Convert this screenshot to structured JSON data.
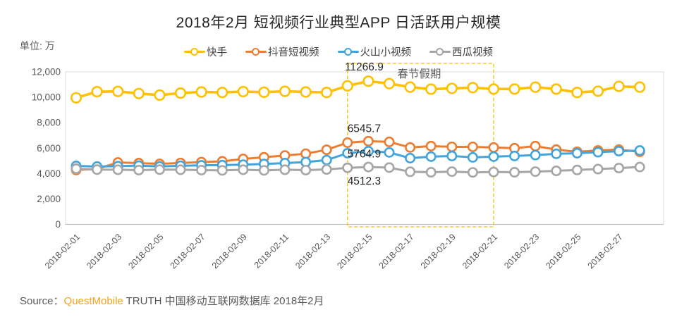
{
  "title": "2018年2月 短视频行业典型APP 日活跃用户规模",
  "unit_label": "单位: 万",
  "source": {
    "prefix": "Source：",
    "brand": "QuestMobile",
    "suffix": " TRUTH 中国移动互联网数据库 2018年2月"
  },
  "chart_data": {
    "type": "line",
    "title": "2018年2月 短视频行业典型APP 日活跃用户规模",
    "ylabel": "单位: 万",
    "ylim": [
      0,
      12000
    ],
    "grid": "plot-border-only",
    "legend_position": "top-center",
    "y_ticks": [
      {
        "value": 0,
        "label": "0"
      },
      {
        "value": 2000,
        "label": "2,000"
      },
      {
        "value": 4000,
        "label": "4,000"
      },
      {
        "value": 6000,
        "label": "6,000"
      },
      {
        "value": 8000,
        "label": "8,000"
      },
      {
        "value": 10000,
        "label": "10,000"
      },
      {
        "value": 12000,
        "label": "12,000"
      }
    ],
    "x": [
      "2018-02-01",
      "2018-02-02",
      "2018-02-03",
      "2018-02-04",
      "2018-02-05",
      "2018-02-06",
      "2018-02-07",
      "2018-02-08",
      "2018-02-09",
      "2018-02-10",
      "2018-02-11",
      "2018-02-12",
      "2018-02-13",
      "2018-02-14",
      "2018-02-15",
      "2018-02-16",
      "2018-02-17",
      "2018-02-18",
      "2018-02-19",
      "2018-02-20",
      "2018-02-21",
      "2018-02-22",
      "2018-02-23",
      "2018-02-24",
      "2018-02-25",
      "2018-02-26",
      "2018-02-27",
      "2018-02-28"
    ],
    "x_tick_every": 2,
    "series": [
      {
        "name": "快手",
        "key": "kuaishou",
        "color": "#FFC000",
        "values": [
          9960,
          10440,
          10460,
          10300,
          10170,
          10330,
          10420,
          10380,
          10450,
          10400,
          10470,
          10420,
          10380,
          10900,
          11266.9,
          11080,
          10800,
          10640,
          10700,
          10760,
          10650,
          10650,
          10800,
          10650,
          10380,
          10480,
          10860,
          10800
        ]
      },
      {
        "name": "抖音短视频",
        "key": "douyin",
        "color": "#ED7D31",
        "values": [
          4280,
          4360,
          4870,
          4820,
          4760,
          4830,
          4900,
          4960,
          5150,
          5280,
          5420,
          5560,
          5870,
          6430,
          6545.7,
          6490,
          6050,
          6160,
          6100,
          6100,
          6050,
          5990,
          6160,
          5880,
          5710,
          5820,
          5880,
          5710
        ]
      },
      {
        "name": "火山小视频",
        "key": "huoshan",
        "color": "#41A5DC",
        "values": [
          4600,
          4550,
          4580,
          4620,
          4560,
          4610,
          4650,
          4660,
          4700,
          4750,
          4820,
          4900,
          5060,
          5600,
          5764.9,
          5660,
          5210,
          5330,
          5380,
          5270,
          5330,
          5380,
          5450,
          5550,
          5600,
          5680,
          5760,
          5810
        ]
      },
      {
        "name": "西瓜视频",
        "key": "xigua",
        "color": "#A6A6A6",
        "values": [
          4380,
          4310,
          4300,
          4270,
          4310,
          4300,
          4270,
          4250,
          4300,
          4250,
          4300,
          4270,
          4320,
          4450,
          4512.3,
          4470,
          4140,
          4100,
          4150,
          4090,
          4120,
          4100,
          4150,
          4210,
          4280,
          4350,
          4430,
          4510
        ]
      }
    ],
    "annotations": [
      {
        "text": "11266.9",
        "date": "2018-02-15",
        "series": "快手"
      },
      {
        "text": "6545.7",
        "date": "2018-02-15",
        "series": "抖音短视频"
      },
      {
        "text": "5764.9",
        "date": "2018-02-15",
        "series": "火山小视频"
      },
      {
        "text": "4512.3",
        "date": "2018-02-15",
        "series": "西瓜视频"
      }
    ],
    "holiday_box": {
      "label": "春节假期",
      "from": "2018-02-14",
      "to": "2018-02-21",
      "border_color": "#FFC000",
      "label_color": "#595959"
    }
  }
}
